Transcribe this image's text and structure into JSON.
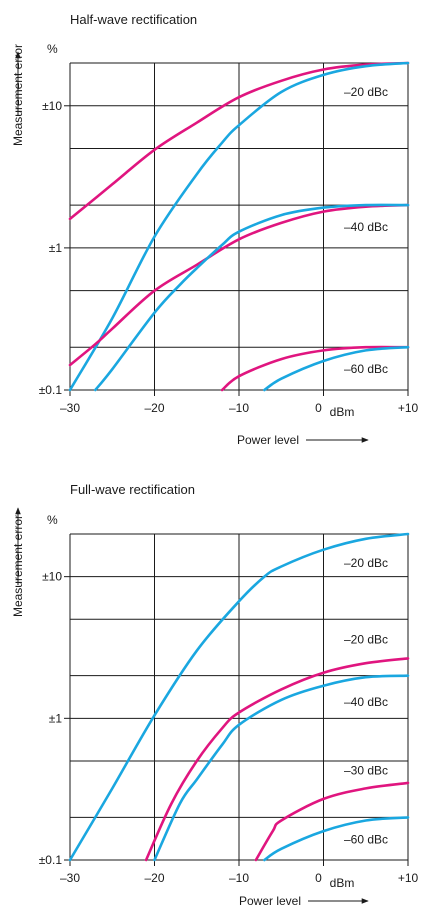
{
  "colors": {
    "magenta": "#e0157f",
    "cyan": "#1aa7e0",
    "grid": "#1a1a1a",
    "text": "#1a1a1a"
  },
  "chart_data": [
    {
      "type": "line",
      "title": "Half-wave rectification",
      "xlabel": "Power level",
      "ylabel": "Measurement error",
      "y_unit": "%",
      "x_unit": "dBm",
      "y_scale": "log",
      "xlim": [
        -30,
        10
      ],
      "ylim": [
        0.1,
        20
      ],
      "xticks": [
        -30,
        -20,
        -10,
        0,
        10
      ],
      "xtick_labels": [
        "–30",
        "–20",
        "–10",
        "0",
        "+10"
      ],
      "yticks": [
        0.1,
        1,
        10
      ],
      "ytick_labels": [
        "±0.1",
        "±1",
        "±10"
      ],
      "grid": true,
      "series": [
        {
          "name": "–20 dBc",
          "color": "magenta",
          "points": [
            [
              -30,
              1.6
            ],
            [
              -25,
              2.8
            ],
            [
              -20,
              4.9
            ],
            [
              -15,
              7.6
            ],
            [
              -10,
              11.5
            ],
            [
              -5,
              15
            ],
            [
              0,
              18
            ],
            [
              5,
              19.5
            ],
            [
              10,
              20
            ]
          ]
        },
        {
          "name": "–20 dBc",
          "color": "cyan",
          "points": [
            [
              -30,
              0.1
            ],
            [
              -25,
              0.32
            ],
            [
              -20,
              1.2
            ],
            [
              -15,
              3.3
            ],
            [
              -12,
              5.5
            ],
            [
              -10,
              7.3
            ],
            [
              -5,
              12.5
            ],
            [
              0,
              16.5
            ],
            [
              5,
              19
            ],
            [
              10,
              20
            ]
          ]
        },
        {
          "name": "–40 dBc",
          "color": "magenta",
          "points": [
            [
              -30,
              0.15
            ],
            [
              -27,
              0.21
            ],
            [
              -25,
              0.27
            ],
            [
              -20,
              0.5
            ],
            [
              -15,
              0.76
            ],
            [
              -10,
              1.15
            ],
            [
              -5,
              1.5
            ],
            [
              0,
              1.8
            ],
            [
              5,
              1.95
            ],
            [
              10,
              2
            ]
          ]
        },
        {
          "name": "–40 dBc",
          "color": "cyan",
          "points": [
            [
              -27,
              0.1
            ],
            [
              -25,
              0.14
            ],
            [
              -20,
              0.35
            ],
            [
              -17,
              0.55
            ],
            [
              -15,
              0.72
            ],
            [
              -12,
              1.05
            ],
            [
              -10,
              1.3
            ],
            [
              -5,
              1.7
            ],
            [
              0,
              1.92
            ],
            [
              5,
              2
            ],
            [
              10,
              2
            ]
          ]
        },
        {
          "name": "–60 dBc",
          "color": "magenta",
          "points": [
            [
              -12,
              0.1
            ],
            [
              -10,
              0.125
            ],
            [
              -5,
              0.165
            ],
            [
              0,
              0.19
            ],
            [
              5,
              0.2
            ],
            [
              10,
              0.2
            ]
          ]
        },
        {
          "name": "–60 dBc",
          "color": "cyan",
          "points": [
            [
              -7,
              0.1
            ],
            [
              -5,
              0.12
            ],
            [
              0,
              0.16
            ],
            [
              5,
              0.19
            ],
            [
              10,
              0.2
            ]
          ]
        }
      ],
      "curve_labels": [
        {
          "text": "–20 dBc",
          "y": 12.5
        },
        {
          "text": "–40 dBc",
          "y": 1.4
        },
        {
          "text": "–60 dBc",
          "y": 0.14
        }
      ]
    },
    {
      "type": "line",
      "title": "Full-wave rectification",
      "xlabel": "Power level",
      "ylabel": "Measurement error",
      "y_unit": "%",
      "x_unit": "dBm",
      "y_scale": "log",
      "xlim": [
        -30,
        10
      ],
      "ylim": [
        0.1,
        20
      ],
      "xticks": [
        -30,
        -20,
        -10,
        0,
        10
      ],
      "xtick_labels": [
        "–30",
        "–20",
        "–10",
        "0",
        "+10"
      ],
      "yticks": [
        0.1,
        1,
        10
      ],
      "ytick_labels": [
        "±0.1",
        "±1",
        "±10"
      ],
      "grid": true,
      "series": [
        {
          "name": "–20 dBc",
          "color": "cyan",
          "points": [
            [
              -30,
              0.1
            ],
            [
              -25,
              0.32
            ],
            [
              -20,
              1.05
            ],
            [
              -15,
              3
            ],
            [
              -10,
              6.7
            ],
            [
              -7,
              10
            ],
            [
              -5,
              11.8
            ],
            [
              0,
              15.5
            ],
            [
              5,
              18.5
            ],
            [
              10,
              20
            ]
          ]
        },
        {
          "name": "–20 dBc",
          "color": "magenta",
          "points": [
            [
              -21,
              0.1
            ],
            [
              -18,
              0.25
            ],
            [
              -15,
              0.5
            ],
            [
              -12,
              0.85
            ],
            [
              -10,
              1.1
            ],
            [
              -5,
              1.6
            ],
            [
              0,
              2.1
            ],
            [
              5,
              2.45
            ],
            [
              10,
              2.65
            ]
          ]
        },
        {
          "name": "–40 dBc",
          "color": "cyan",
          "points": [
            [
              -20,
              0.1
            ],
            [
              -17,
              0.25
            ],
            [
              -15,
              0.37
            ],
            [
              -12,
              0.65
            ],
            [
              -10,
              0.9
            ],
            [
              -5,
              1.35
            ],
            [
              0,
              1.7
            ],
            [
              5,
              1.95
            ],
            [
              10,
              2
            ]
          ]
        },
        {
          "name": "–30 dBc",
          "color": "magenta",
          "points": [
            [
              -8,
              0.1
            ],
            [
              -6,
              0.16
            ],
            [
              -5,
              0.19
            ],
            [
              0,
              0.27
            ],
            [
              5,
              0.32
            ],
            [
              10,
              0.35
            ]
          ]
        },
        {
          "name": "–60 dBc",
          "color": "cyan",
          "points": [
            [
              -7,
              0.1
            ],
            [
              -5,
              0.12
            ],
            [
              0,
              0.16
            ],
            [
              5,
              0.19
            ],
            [
              10,
              0.2
            ]
          ]
        }
      ],
      "curve_labels": [
        {
          "text": "–20 dBc",
          "y": 12.5
        },
        {
          "text": "–20 dBc",
          "y": 3.6
        },
        {
          "text": "–40 dBc",
          "y": 1.3
        },
        {
          "text": "–30 dBc",
          "y": 0.43
        },
        {
          "text": "–60 dBc",
          "y": 0.14
        }
      ]
    }
  ]
}
